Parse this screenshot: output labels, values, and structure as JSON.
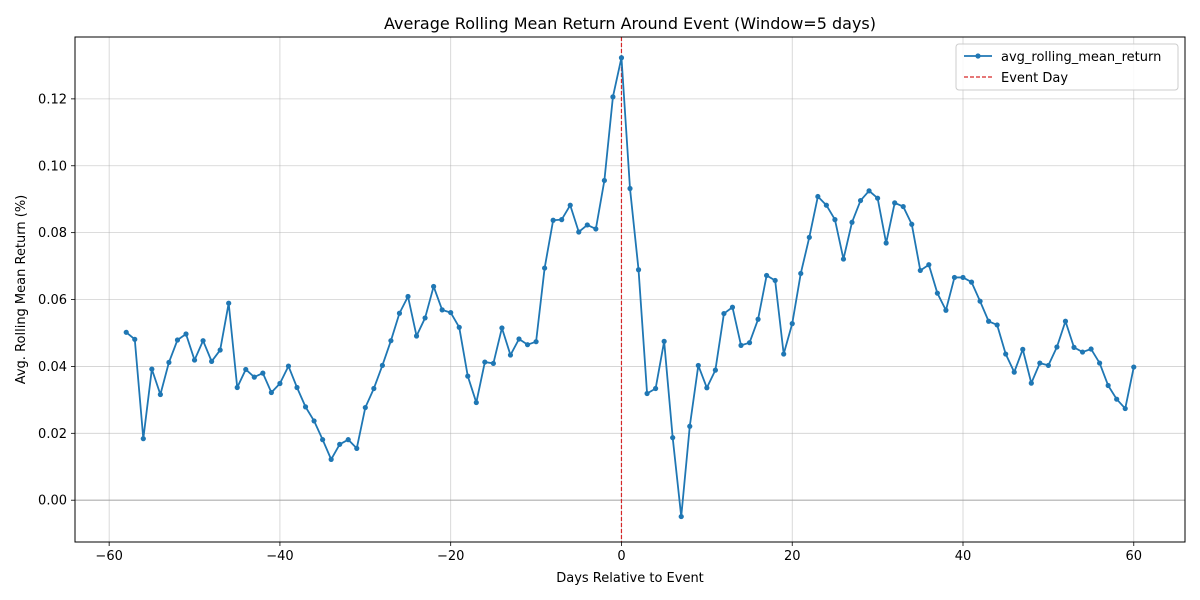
{
  "chart_data": {
    "type": "line",
    "title": "Average Rolling Mean Return Around Event (Window=5 days)",
    "xlabel": "Days Relative to Event",
    "ylabel": "Avg. Rolling Mean Return (%)",
    "xlim": [
      -64,
      66
    ],
    "ylim": [
      -0.0125,
      0.1385
    ],
    "xticks": [
      -60,
      -40,
      -20,
      0,
      20,
      40,
      60
    ],
    "xtick_labels": [
      "−60",
      "−40",
      "−20",
      "0",
      "20",
      "40",
      "60"
    ],
    "yticks": [
      0.0,
      0.02,
      0.04,
      0.06,
      0.08,
      0.1,
      0.12
    ],
    "ytick_labels": [
      "0.00",
      "0.02",
      "0.04",
      "0.06",
      "0.08",
      "0.10",
      "0.12"
    ],
    "grid": true,
    "legend_position": "top-right",
    "series": [
      {
        "name": "avg_rolling_mean_return",
        "color": "#1f77b4",
        "marker": "dot",
        "x": [
          -58,
          -57,
          -56,
          -55,
          -54,
          -53,
          -52,
          -51,
          -50,
          -49,
          -48,
          -47,
          -46,
          -45,
          -44,
          -43,
          -42,
          -41,
          -40,
          -39,
          -38,
          -37,
          -36,
          -35,
          -34,
          -33,
          -32,
          -31,
          -30,
          -29,
          -28,
          -27,
          -26,
          -25,
          -24,
          -23,
          -22,
          -21,
          -20,
          -19,
          -18,
          -17,
          -16,
          -15,
          -14,
          -13,
          -12,
          -11,
          -10,
          -9,
          -8,
          -7,
          -6,
          -5,
          -4,
          -3,
          -2,
          -1,
          0,
          1,
          2,
          3,
          4,
          5,
          6,
          7,
          8,
          9,
          10,
          11,
          12,
          13,
          14,
          15,
          16,
          17,
          18,
          19,
          20,
          21,
          22,
          23,
          24,
          25,
          26,
          27,
          28,
          29,
          30,
          31,
          32,
          33,
          34,
          35,
          36,
          37,
          38,
          39,
          40,
          41,
          42,
          43,
          44,
          45,
          46,
          47,
          48,
          49,
          50,
          51,
          52,
          53,
          54,
          55,
          56,
          57,
          58,
          59,
          60
        ],
        "y": [
          0.0502,
          0.0481,
          0.0184,
          0.0392,
          0.0316,
          0.0412,
          0.0479,
          0.0497,
          0.0419,
          0.0477,
          0.0415,
          0.0449,
          0.0589,
          0.0337,
          0.0391,
          0.0368,
          0.038,
          0.0322,
          0.0349,
          0.0401,
          0.0337,
          0.0279,
          0.0237,
          0.0181,
          0.0122,
          0.0167,
          0.0181,
          0.0155,
          0.0277,
          0.0334,
          0.0403,
          0.0477,
          0.0559,
          0.0609,
          0.0491,
          0.0545,
          0.0639,
          0.0569,
          0.0561,
          0.0517,
          0.0371,
          0.0292,
          0.0413,
          0.0409,
          0.0515,
          0.0434,
          0.0482,
          0.0465,
          0.0474,
          0.0694,
          0.0837,
          0.0839,
          0.0882,
          0.0802,
          0.0823,
          0.0811,
          0.0956,
          0.1206,
          0.1323,
          0.0932,
          0.0689,
          0.0319,
          0.0334,
          0.0475,
          0.0187,
          -0.0049,
          0.0221,
          0.0403,
          0.0336,
          0.0389,
          0.0558,
          0.0577,
          0.0463,
          0.0471,
          0.0541,
          0.0672,
          0.0657,
          0.0437,
          0.0528,
          0.0678,
          0.0786,
          0.0908,
          0.0882,
          0.0839,
          0.0721,
          0.0831,
          0.0896,
          0.0925,
          0.0903,
          0.0769,
          0.0889,
          0.0878,
          0.0825,
          0.0687,
          0.0704,
          0.0619,
          0.0568,
          0.0666,
          0.0666,
          0.0652,
          0.0595,
          0.0535,
          0.0524,
          0.0437,
          0.0383,
          0.0451,
          0.035,
          0.041,
          0.0403,
          0.0458,
          0.0535,
          0.0457,
          0.0443,
          0.0452,
          0.041,
          0.0343,
          0.0302,
          0.0274,
          0.0398
        ]
      },
      {
        "name": "Event Day",
        "color": "#d62728",
        "style": "dashed",
        "x_value": 0
      }
    ],
    "reference_line_y": 0.0
  }
}
